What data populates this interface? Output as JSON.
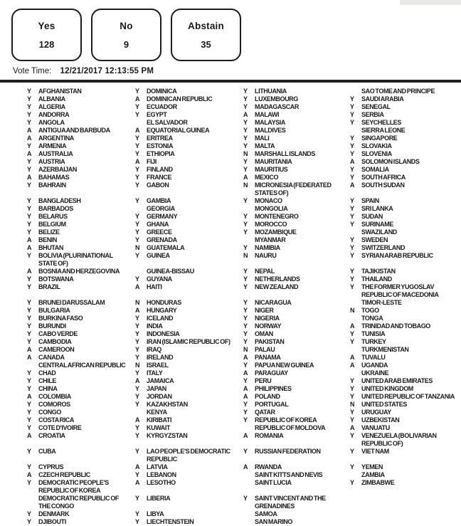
{
  "summary": {
    "yes": {
      "label": "Yes",
      "count": "128"
    },
    "no": {
      "label": "No",
      "count": "9"
    },
    "abstain": {
      "label": "Abstain",
      "count": "35"
    }
  },
  "vote_time": {
    "label": "Vote Time:",
    "value": "12/21/2017 12:13:55 PM"
  },
  "columns": [
    [
      [
        "Y",
        "AFGHANISTAN"
      ],
      [
        "Y",
        "ALBANIA"
      ],
      [
        "Y",
        "ALGERIA"
      ],
      [
        "Y",
        "ANDORRA"
      ],
      [
        "Y",
        "ANGOLA"
      ],
      [
        "A",
        "ANTIGUA AND BARBUDA"
      ],
      [
        "A",
        "ARGENTINA"
      ],
      [
        "Y",
        "ARMENIA"
      ],
      [
        "A",
        "AUSTRALIA"
      ],
      [
        "Y",
        "AUSTRIA"
      ],
      [
        "Y",
        "AZERBAIJAN"
      ],
      [
        "A",
        "BAHAMAS"
      ],
      [
        "Y",
        "BAHRAIN"
      ],
      [
        "Y",
        "BANGLADESH"
      ],
      [
        "Y",
        "BARBADOS"
      ],
      [
        "Y",
        "BELARUS"
      ],
      [
        "Y",
        "BELGIUM"
      ],
      [
        "Y",
        "BELIZE"
      ],
      [
        "A",
        "BENIN"
      ],
      [
        "A",
        "BHUTAN"
      ],
      [
        "Y",
        "BOLIVIA (PLURINATIONAL STATE OF)"
      ],
      [
        "A",
        "BOSNIA AND HERZEGOVINA"
      ],
      [
        "Y",
        "BOTSWANA"
      ],
      [
        "Y",
        "BRAZIL"
      ],
      [
        "Y",
        "BRUNEI DARUSSALAM"
      ],
      [
        "Y",
        "BULGARIA"
      ],
      [
        "Y",
        "BURKINA FASO"
      ],
      [
        "Y",
        "BURUNDI"
      ],
      [
        "Y",
        "CABO VERDE"
      ],
      [
        "Y",
        "CAMBODIA"
      ],
      [
        "A",
        "CAMEROON"
      ],
      [
        "A",
        "CANADA"
      ],
      [
        "",
        "CENTRAL AFRICAN REPUBLIC"
      ],
      [
        "Y",
        "CHAD"
      ],
      [
        "Y",
        "CHILE"
      ],
      [
        "Y",
        "CHINA"
      ],
      [
        "A",
        "COLOMBIA"
      ],
      [
        "Y",
        "COMOROS"
      ],
      [
        "Y",
        "CONGO"
      ],
      [
        "Y",
        "COSTA RICA"
      ],
      [
        "Y",
        "COTE D'IVOIRE"
      ],
      [
        "A",
        "CROATIA"
      ],
      [
        "Y",
        "CUBA"
      ],
      [
        "Y",
        "CYPRUS"
      ],
      [
        "A",
        "CZECH REPUBLIC"
      ],
      [
        "Y",
        "DEMOCRATIC PEOPLE'S REPUBLIC OF KOREA"
      ],
      [
        "",
        "DEMOCRATIC REPUBLIC OF THE CONGO"
      ],
      [
        "Y",
        "DENMARK"
      ],
      [
        "Y",
        "DJIBOUTI"
      ]
    ],
    [
      [
        "Y",
        "DOMINICA"
      ],
      [
        "A",
        "DOMINICAN REPUBLIC"
      ],
      [
        "Y",
        "ECUADOR"
      ],
      [
        "Y",
        "EGYPT"
      ],
      [
        "",
        "EL SALVADOR"
      ],
      [
        "A",
        "EQUATORIAL GUINEA"
      ],
      [
        "Y",
        "ERITREA"
      ],
      [
        "Y",
        "ESTONIA"
      ],
      [
        "Y",
        "ETHIOPIA"
      ],
      [
        "A",
        "FIJI"
      ],
      [
        "Y",
        "FINLAND"
      ],
      [
        "Y",
        "FRANCE"
      ],
      [
        "Y",
        "GABON"
      ],
      [
        "Y",
        "GAMBIA"
      ],
      [
        "",
        "GEORGIA"
      ],
      [
        "Y",
        "GERMANY"
      ],
      [
        "Y",
        "GHANA"
      ],
      [
        "Y",
        "GREECE"
      ],
      [
        "Y",
        "GRENADA"
      ],
      [
        "N",
        "GUATEMALA"
      ],
      [
        "Y",
        "GUINEA"
      ],
      [
        "",
        "GUINEA-BISSAU"
      ],
      [
        "Y",
        "GUYANA"
      ],
      [
        "A",
        "HAITI"
      ],
      [
        "N",
        "HONDURAS"
      ],
      [
        "A",
        "HUNGARY"
      ],
      [
        "Y",
        "ICELAND"
      ],
      [
        "Y",
        "INDIA"
      ],
      [
        "Y",
        "INDONESIA"
      ],
      [
        "Y",
        "IRAN (ISLAMIC REPUBLIC OF)"
      ],
      [
        "Y",
        "IRAQ"
      ],
      [
        "Y",
        "IRELAND"
      ],
      [
        "N",
        "ISRAEL"
      ],
      [
        "Y",
        "ITALY"
      ],
      [
        "A",
        "JAMAICA"
      ],
      [
        "Y",
        "JAPAN"
      ],
      [
        "Y",
        "JORDAN"
      ],
      [
        "Y",
        "KAZAKHSTAN"
      ],
      [
        "",
        "KENYA"
      ],
      [
        "A",
        "KIRIBATI"
      ],
      [
        "Y",
        "KUWAIT"
      ],
      [
        "Y",
        "KYRGYZSTAN"
      ],
      [
        "Y",
        "LAO PEOPLE'S DEMOCRATIC REPUBLIC"
      ],
      [
        "A",
        "LATVIA"
      ],
      [
        "Y",
        "LEBANON"
      ],
      [
        "A",
        "LESOTHO"
      ],
      [
        "Y",
        "LIBERIA"
      ],
      [
        "Y",
        "LIBYA"
      ],
      [
        "Y",
        "LIECHTENSTEIN"
      ]
    ],
    [
      [
        "Y",
        "LITHUANIA"
      ],
      [
        "Y",
        "LUXEMBOURG"
      ],
      [
        "Y",
        "MADAGASCAR"
      ],
      [
        "A",
        "MALAWI"
      ],
      [
        "Y",
        "MALAYSIA"
      ],
      [
        "Y",
        "MALDIVES"
      ],
      [
        "Y",
        "MALI"
      ],
      [
        "Y",
        "MALTA"
      ],
      [
        "N",
        "MARSHALL ISLANDS"
      ],
      [
        "Y",
        "MAURITANIA"
      ],
      [
        "Y",
        "MAURITIUS"
      ],
      [
        "A",
        "MEXICO"
      ],
      [
        "N",
        "MICRONESIA (FEDERATED STATES OF)"
      ],
      [
        "Y",
        "MONACO"
      ],
      [
        "",
        "MONGOLIA"
      ],
      [
        "Y",
        "MONTENEGRO"
      ],
      [
        "Y",
        "MOROCCO"
      ],
      [
        "Y",
        "MOZAMBIQUE"
      ],
      [
        "",
        "MYANMAR"
      ],
      [
        "Y",
        "NAMIBIA"
      ],
      [
        "N",
        "NAURU"
      ],
      [
        "Y",
        "NEPAL"
      ],
      [
        "Y",
        "NETHERLANDS"
      ],
      [
        "Y",
        "NEW ZEALAND"
      ],
      [
        "Y",
        "NICARAGUA"
      ],
      [
        "Y",
        "NIGER"
      ],
      [
        "Y",
        "NIGERIA"
      ],
      [
        "Y",
        "NORWAY"
      ],
      [
        "Y",
        "OMAN"
      ],
      [
        "Y",
        "PAKISTAN"
      ],
      [
        "N",
        "PALAU"
      ],
      [
        "A",
        "PANAMA"
      ],
      [
        "Y",
        "PAPUA NEW GUINEA"
      ],
      [
        "A",
        "PARAGUAY"
      ],
      [
        "Y",
        "PERU"
      ],
      [
        "A",
        "PHILIPPINES"
      ],
      [
        "A",
        "POLAND"
      ],
      [
        "Y",
        "PORTUGAL"
      ],
      [
        "Y",
        "QATAR"
      ],
      [
        "Y",
        "REPUBLIC OF KOREA"
      ],
      [
        "",
        "REPUBLIC OF MOLDOVA"
      ],
      [
        "A",
        "ROMANIA"
      ],
      [
        "Y",
        "RUSSIAN FEDERATION"
      ],
      [
        "A",
        "RWANDA"
      ],
      [
        "",
        "SAINT KITTS AND NEVIS"
      ],
      [
        "",
        "SAINT LUCIA"
      ],
      [
        "Y",
        "SAINT VINCENT AND THE GRENADINES"
      ],
      [
        "",
        "SAMOA"
      ],
      [
        "",
        "SAN MARINO"
      ]
    ],
    [
      [
        "",
        "SAO TOME AND PRINCIPE"
      ],
      [
        "Y",
        "SAUDI ARABIA"
      ],
      [
        "Y",
        "SENEGAL"
      ],
      [
        "Y",
        "SERBIA"
      ],
      [
        "Y",
        "SEYCHELLES"
      ],
      [
        "",
        "SIERRA LEONE"
      ],
      [
        "Y",
        "SINGAPORE"
      ],
      [
        "Y",
        "SLOVAKIA"
      ],
      [
        "Y",
        "SLOVENIA"
      ],
      [
        "A",
        "SOLOMON ISLANDS"
      ],
      [
        "Y",
        "SOMALIA"
      ],
      [
        "Y",
        "SOUTH AFRICA"
      ],
      [
        "A",
        "SOUTH SUDAN"
      ],
      [
        "Y",
        "SPAIN"
      ],
      [
        "Y",
        "SRI LANKA"
      ],
      [
        "Y",
        "SUDAN"
      ],
      [
        "Y",
        "SURINAME"
      ],
      [
        "",
        "SWAZILAND"
      ],
      [
        "Y",
        "SWEDEN"
      ],
      [
        "Y",
        "SWITZERLAND"
      ],
      [
        "Y",
        "SYRIAN ARAB REPUBLIC"
      ],
      [
        "Y",
        "TAJIKISTAN"
      ],
      [
        "Y",
        "THAILAND"
      ],
      [
        "Y",
        "THE FORMER YUGOSLAV REPUBLIC OF MACEDONIA"
      ],
      [
        "",
        "TIMOR-LESTE"
      ],
      [
        "N",
        "TOGO"
      ],
      [
        "",
        "TONGA"
      ],
      [
        "A",
        "TRINIDAD AND TOBAGO"
      ],
      [
        "Y",
        "TUNISIA"
      ],
      [
        "Y",
        "TURKEY"
      ],
      [
        "",
        "TURKMENISTAN"
      ],
      [
        "A",
        "TUVALU"
      ],
      [
        "A",
        "UGANDA"
      ],
      [
        "",
        "UKRAINE"
      ],
      [
        "Y",
        "UNITED ARAB EMIRATES"
      ],
      [
        "Y",
        "UNITED KINGDOM"
      ],
      [
        "Y",
        "UNITED REPUBLIC OF TANZANIA"
      ],
      [
        "N",
        "UNITED STATES"
      ],
      [
        "Y",
        "URUGUAY"
      ],
      [
        "Y",
        "UZBEKISTAN"
      ],
      [
        "A",
        "VANUATU"
      ],
      [
        "Y",
        "VENEZUELA (BOLIVARIAN REPUBLIC OF)"
      ],
      [
        "Y",
        "VIET NAM"
      ],
      [
        "Y",
        "YEMEN"
      ],
      [
        "",
        "ZAMBIA"
      ],
      [
        "Y",
        "ZIMBABWE"
      ]
    ]
  ]
}
